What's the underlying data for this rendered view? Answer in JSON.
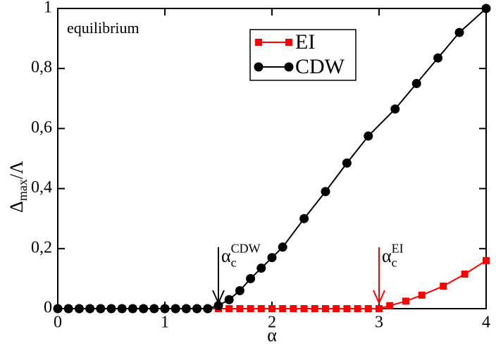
{
  "chart_data": {
    "type": "line",
    "x_label": "α",
    "y_label": {
      "main": "Δ",
      "sub": "max",
      "tail": "/Λ"
    },
    "annotations": [
      {
        "text": "equilibrium"
      },
      {
        "text": "α",
        "sub": "c",
        "sup": "CDW",
        "x": 1.5,
        "color": "#000000"
      },
      {
        "text": "α",
        "sub": "c",
        "sup": "EI",
        "x": 3.0,
        "color": "#ff0000"
      }
    ],
    "xlim": [
      0,
      4
    ],
    "ylim": [
      0,
      1
    ],
    "xticks": [
      0,
      1,
      2,
      3,
      4
    ],
    "yticks": [
      0,
      {
        "value": 0.2,
        "label": "0,2"
      },
      {
        "value": 0.4,
        "label": "0,4"
      },
      {
        "value": 0.6,
        "label": "0,6"
      },
      {
        "value": 0.8,
        "label": "0,8"
      },
      1
    ],
    "legend": "top-center",
    "series": [
      {
        "name": "EI",
        "color": "#ff0000",
        "marker": "square",
        "x": [
          0,
          0.1,
          0.2,
          0.3,
          0.4,
          0.5,
          0.6,
          0.7,
          0.8,
          0.9,
          1.0,
          1.1,
          1.2,
          1.3,
          1.4,
          1.5,
          1.6,
          1.7,
          1.8,
          1.9,
          2.0,
          2.1,
          2.2,
          2.3,
          2.4,
          2.5,
          2.6,
          2.7,
          2.8,
          2.9,
          3.0,
          3.1,
          3.25,
          3.4,
          3.6,
          3.8,
          4.0
        ],
        "values": [
          0,
          0,
          0,
          0,
          0,
          0,
          0,
          0,
          0,
          0,
          0,
          0,
          0,
          0,
          0,
          0,
          0,
          0,
          0,
          0,
          0,
          0,
          0,
          0,
          0,
          0,
          0,
          0,
          0,
          0,
          0,
          0.01,
          0.025,
          0.045,
          0.075,
          0.115,
          0.16
        ]
      },
      {
        "name": "CDW",
        "color": "#000000",
        "marker": "circle",
        "x": [
          0,
          0.1,
          0.2,
          0.3,
          0.4,
          0.5,
          0.6,
          0.7,
          0.8,
          0.9,
          1.0,
          1.1,
          1.2,
          1.3,
          1.4,
          1.5,
          1.6,
          1.7,
          1.8,
          1.9,
          2.0,
          2.1,
          2.3,
          2.5,
          2.7,
          2.9,
          3.15,
          3.35,
          3.55,
          3.75,
          4.0
        ],
        "values": [
          0,
          0,
          0,
          0,
          0,
          0,
          0,
          0,
          0,
          0,
          0,
          0,
          0,
          0,
          0,
          0.01,
          0.03,
          0.06,
          0.1,
          0.135,
          0.17,
          0.205,
          0.3,
          0.39,
          0.485,
          0.575,
          0.665,
          0.75,
          0.835,
          0.92,
          1.0
        ]
      }
    ]
  }
}
